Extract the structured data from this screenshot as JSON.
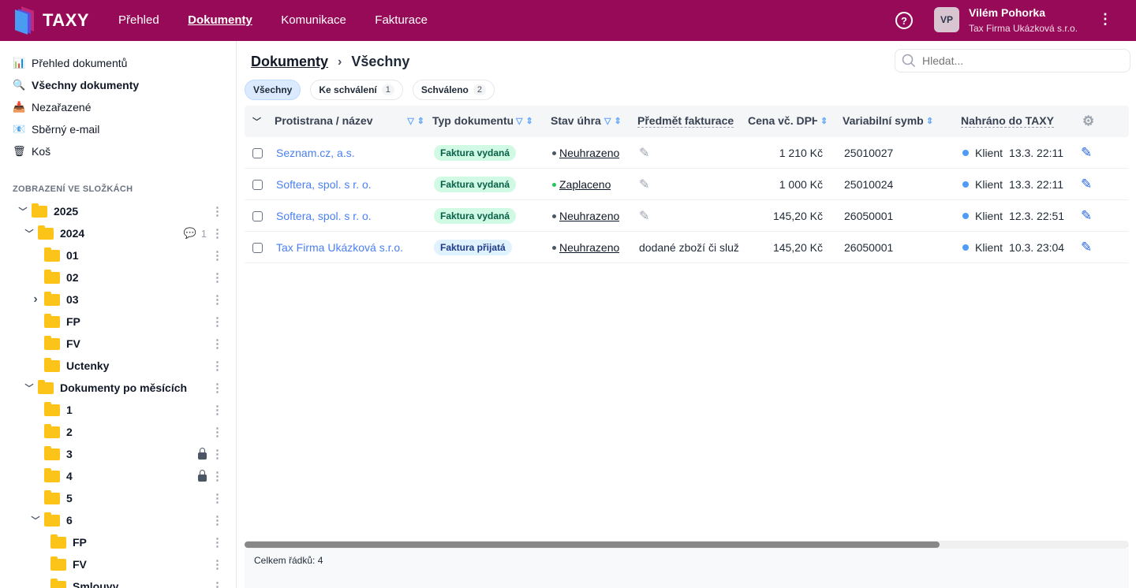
{
  "brand": {
    "name": "TAXY",
    "color": "#960a58"
  },
  "nav": [
    {
      "label": "Přehled",
      "active": false
    },
    {
      "label": "Dokumenty",
      "active": true
    },
    {
      "label": "Komunikace",
      "active": false
    },
    {
      "label": "Fakturace",
      "active": false
    }
  ],
  "user": {
    "initials": "VP",
    "name": "Vilém Pohorka",
    "company": "Tax Firma Ukázková s.r.o."
  },
  "sidebar": {
    "items": [
      {
        "label": "Přehled dokumentů",
        "icon": "bar-chart-icon",
        "glyph": "📊"
      },
      {
        "label": "Všechny dokumenty",
        "icon": "magnifier-icon",
        "glyph": "🔍",
        "active": true
      },
      {
        "label": "Nezařazené",
        "icon": "inbox-tray-icon",
        "glyph": "📥"
      },
      {
        "label": "Sběrný e-mail",
        "icon": "envelope-icon",
        "glyph": "📧"
      },
      {
        "label": "Koš",
        "icon": "wastebasket-icon",
        "glyph": "🗑"
      }
    ],
    "section_title": "ZOBRAZENÍ VE SLOŽKÁCH",
    "tree": [
      {
        "label": "2025",
        "depth": 0,
        "state": "expanded"
      },
      {
        "label": "2024",
        "depth": 1,
        "state": "expanded",
        "comments": "1"
      },
      {
        "label": "01",
        "depth": 2
      },
      {
        "label": "02",
        "depth": 2
      },
      {
        "label": "03",
        "depth": 2,
        "state": "collapsed"
      },
      {
        "label": "FP",
        "depth": 2
      },
      {
        "label": "FV",
        "depth": 2
      },
      {
        "label": "Uctenky",
        "depth": 2
      },
      {
        "label": "Dokumenty po měsících",
        "depth": 1,
        "state": "expanded"
      },
      {
        "label": "1",
        "depth": 2
      },
      {
        "label": "2",
        "depth": 2
      },
      {
        "label": "3",
        "depth": 2,
        "locked": true
      },
      {
        "label": "4",
        "depth": 2,
        "locked": true
      },
      {
        "label": "5",
        "depth": 2
      },
      {
        "label": "6",
        "depth": 2,
        "state": "expanded"
      },
      {
        "label": "FP",
        "depth": 3
      },
      {
        "label": "FV",
        "depth": 3
      },
      {
        "label": "Smlouvy",
        "depth": 3
      }
    ]
  },
  "main": {
    "breadcrumb": {
      "root": "Dokumenty",
      "current": "Všechny"
    },
    "search_placeholder": "Hledat...",
    "chips": [
      {
        "label": "Všechny",
        "active": true
      },
      {
        "label": "Ke schválení",
        "count": "1"
      },
      {
        "label": "Schváleno",
        "count": "2"
      }
    ],
    "columns": [
      "Protistrana / název",
      "Typ dokumentu",
      "Stav úhrady",
      "Předmět fakturace",
      "Cena vč. DPH",
      "Variabilní symbol",
      "Nahráno do TAXY"
    ],
    "rows": [
      {
        "party": "Seznam.cz, a.s.",
        "type": "Faktura vydaná",
        "type_kind": "out",
        "status": "Neuhrazeno",
        "status_color": "#4b5563",
        "subject": "",
        "price": "1 210 Kč",
        "vs": "25010027",
        "uploader": "Klient",
        "uploaded": "13.3. 22:11",
        "menu": false
      },
      {
        "party": "Softera, spol. s r. o.",
        "type": "Faktura vydaná",
        "type_kind": "out",
        "status": "Zaplaceno",
        "status_color": "#22c55e",
        "subject": "",
        "price": "1 000 Kč",
        "vs": "25010024",
        "uploader": "Klient",
        "uploaded": "13.3. 22:11",
        "menu": false
      },
      {
        "party": "Softera, spol. s r. o.",
        "type": "Faktura vydaná",
        "type_kind": "out",
        "status": "Neuhrazeno",
        "status_color": "#4b5563",
        "subject": "",
        "price": "145,20 Kč",
        "vs": "26050001",
        "uploader": "Klient",
        "uploaded": "12.3. 22:51",
        "menu": true
      },
      {
        "party": "Tax Firma Ukázková s.r.o.",
        "type": "Faktura přijatá",
        "type_kind": "in",
        "status": "Neuhrazeno",
        "status_color": "#4b5563",
        "subject": "dodané zboží či služ",
        "price": "145,20 Kč",
        "vs": "26050001",
        "uploader": "Klient",
        "uploaded": "10.3. 23:04",
        "menu": true
      }
    ],
    "footer": "Celkem řádků: 4"
  }
}
